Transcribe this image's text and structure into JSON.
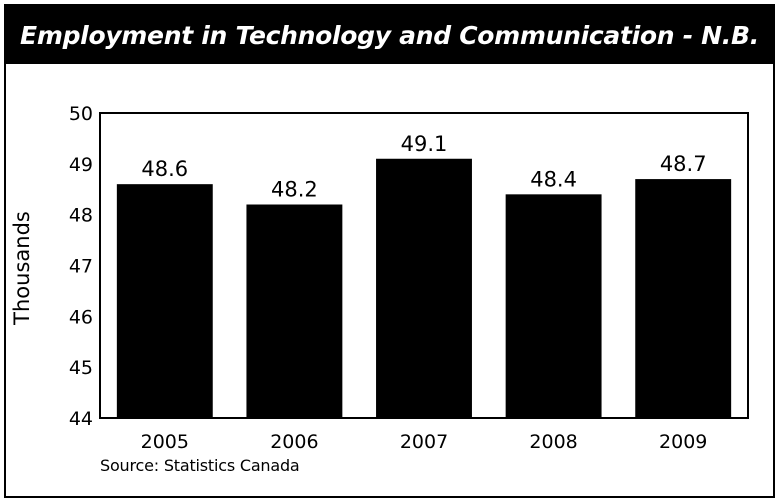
{
  "chart_data": {
    "type": "bar",
    "title": "Employment in Technology and Communication - N.B.",
    "ylabel": "Thousands",
    "xlabel": "",
    "categories": [
      "2005",
      "2006",
      "2007",
      "2008",
      "2009"
    ],
    "values": [
      48.6,
      48.2,
      49.1,
      48.4,
      48.7
    ],
    "data_labels": [
      "48.6",
      "48.2",
      "49.1",
      "48.4",
      "48.7"
    ],
    "ylim": [
      44,
      50
    ],
    "yticks": [
      "44",
      "45",
      "46",
      "47",
      "48",
      "49",
      "50"
    ],
    "grid": false,
    "legend": "none",
    "bar_color": "#000000",
    "source": "Source: Statistics Canada"
  }
}
